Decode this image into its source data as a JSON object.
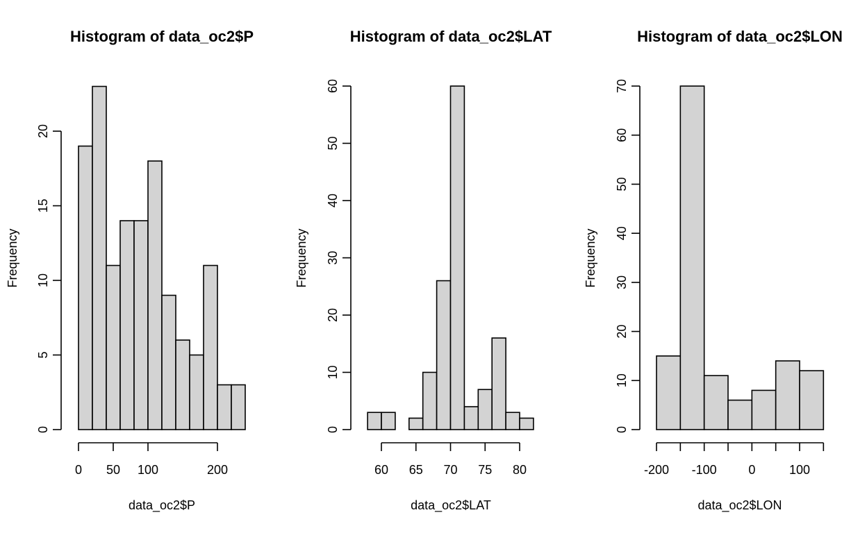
{
  "chart_data": [
    {
      "type": "bar",
      "title": "Histogram of data_oc2$P",
      "xlabel": "data_oc2$P",
      "ylabel": "Frequency",
      "bin_edges": [
        0,
        20,
        40,
        60,
        80,
        100,
        120,
        140,
        160,
        180,
        200,
        220,
        240
      ],
      "values": [
        19,
        23,
        11,
        14,
        14,
        18,
        9,
        6,
        5,
        11,
        3,
        3
      ],
      "xticks": [
        0,
        50,
        100,
        200
      ],
      "xtick_labels": [
        "0",
        "50",
        "100",
        "200"
      ],
      "xaxis_range": [
        0,
        200
      ],
      "yticks": [
        0,
        5,
        10,
        15,
        20
      ],
      "ytick_labels": [
        "0",
        "5",
        "10",
        "15",
        "20"
      ],
      "yaxis_range": [
        0,
        20
      ],
      "grid": false
    },
    {
      "type": "bar",
      "title": "Histogram of data_oc2$LAT",
      "xlabel": "data_oc2$LAT",
      "ylabel": "Frequency",
      "bin_edges": [
        58,
        60,
        62,
        64,
        66,
        68,
        70,
        72,
        74,
        76,
        78,
        80,
        82
      ],
      "values": [
        3,
        3,
        0,
        2,
        10,
        26,
        60,
        4,
        7,
        16,
        3,
        2
      ],
      "xticks": [
        60,
        65,
        70,
        75,
        80
      ],
      "xtick_labels": [
        "60",
        "65",
        "70",
        "75",
        "80"
      ],
      "xaxis_range": [
        60,
        80
      ],
      "yticks": [
        0,
        10,
        20,
        30,
        40,
        50,
        60
      ],
      "ytick_labels": [
        "0",
        "10",
        "20",
        "30",
        "40",
        "50",
        "60"
      ],
      "yaxis_range": [
        0,
        60
      ],
      "grid": false
    },
    {
      "type": "bar",
      "title": "Histogram of data_oc2$LON",
      "xlabel": "data_oc2$LON",
      "ylabel": "Frequency",
      "bin_edges": [
        -200,
        -150,
        -100,
        -50,
        0,
        50,
        100,
        150
      ],
      "values": [
        15,
        70,
        11,
        6,
        8,
        14,
        12
      ],
      "xticks": [
        -200,
        -150,
        -100,
        -50,
        0,
        50,
        100,
        150
      ],
      "xtick_labels": [
        "-200",
        "",
        "-100",
        "",
        "0",
        "",
        "100",
        ""
      ],
      "xaxis_range": [
        -200,
        150
      ],
      "yticks": [
        0,
        10,
        20,
        30,
        40,
        50,
        60,
        70
      ],
      "ytick_labels": [
        "0",
        "10",
        "20",
        "30",
        "40",
        "50",
        "60",
        "70"
      ],
      "yaxis_range": [
        0,
        70
      ],
      "grid": false
    }
  ]
}
